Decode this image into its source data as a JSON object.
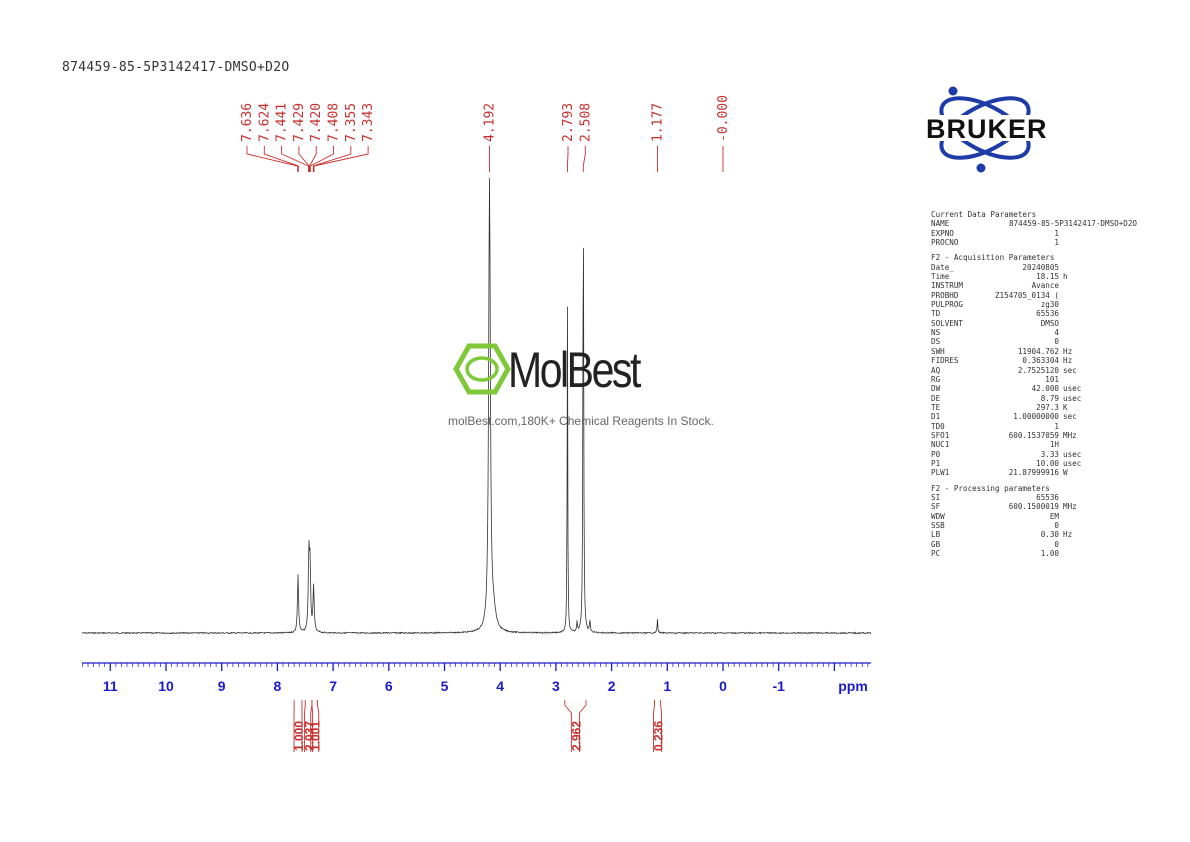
{
  "sample_title": "874459-85-5P3142417-DMSO+D2O",
  "brand": {
    "name": "BRUKER",
    "colors": {
      "ring": "#1e3ca8",
      "text": "#111111"
    }
  },
  "watermark": {
    "name": "MolBest",
    "tagline": "molBest.com,180K+ Chemical Reagents In Stock.",
    "accent": "#7ec83a"
  },
  "colors": {
    "annotation": "#c8302e",
    "axis": "#1a1acc",
    "trace": "#333333"
  },
  "parameters": [
    {
      "title": "Current Data Parameters",
      "rows": [
        {
          "k": "NAME",
          "v": "874459-85-5P3142417-DMSO+D2O",
          "u": "",
          "wide": true
        },
        {
          "k": "EXPNO",
          "v": "1",
          "u": ""
        },
        {
          "k": "PROCNO",
          "v": "1",
          "u": ""
        }
      ]
    },
    {
      "title": "F2 - Acquisition Parameters",
      "rows": [
        {
          "k": "Date_",
          "v": "20240805",
          "u": ""
        },
        {
          "k": "Time",
          "v": "18.15",
          "u": "h"
        },
        {
          "k": "INSTRUM",
          "v": "Avance",
          "u": ""
        },
        {
          "k": "PROBHD",
          "v": "Z154705_0134 (",
          "u": ""
        },
        {
          "k": "PULPROG",
          "v": "zg30",
          "u": ""
        },
        {
          "k": "TD",
          "v": "65536",
          "u": ""
        },
        {
          "k": "SOLVENT",
          "v": "DMSO",
          "u": ""
        },
        {
          "k": "NS",
          "v": "4",
          "u": ""
        },
        {
          "k": "DS",
          "v": "0",
          "u": ""
        },
        {
          "k": "SWH",
          "v": "11904.762",
          "u": "Hz"
        },
        {
          "k": "FIDRES",
          "v": "0.363304",
          "u": "Hz"
        },
        {
          "k": "AQ",
          "v": "2.7525120",
          "u": "sec"
        },
        {
          "k": "RG",
          "v": "101",
          "u": ""
        },
        {
          "k": "DW",
          "v": "42.000",
          "u": "usec"
        },
        {
          "k": "DE",
          "v": "8.79",
          "u": "usec"
        },
        {
          "k": "TE",
          "v": "297.3",
          "u": "K"
        },
        {
          "k": "D1",
          "v": "1.00000000",
          "u": "sec"
        },
        {
          "k": "TD0",
          "v": "1",
          "u": ""
        },
        {
          "k": "SFO1",
          "v": "600.1537059",
          "u": "MHz"
        },
        {
          "k": "NUC1",
          "v": "1H",
          "u": ""
        },
        {
          "k": "P0",
          "v": "3.33",
          "u": "usec"
        },
        {
          "k": "P1",
          "v": "10.00",
          "u": "usec"
        },
        {
          "k": "PLW1",
          "v": "21.87999916",
          "u": "W"
        }
      ]
    },
    {
      "title": "F2 - Processing parameters",
      "rows": [
        {
          "k": "SI",
          "v": "65536",
          "u": ""
        },
        {
          "k": "SF",
          "v": "600.1500019",
          "u": "MHz"
        },
        {
          "k": "WDW",
          "v": "EM",
          "u": ""
        },
        {
          "k": "SSB",
          "v": "0",
          "u": ""
        },
        {
          "k": "LB",
          "v": "0.30",
          "u": "Hz"
        },
        {
          "k": "GB",
          "v": "0",
          "u": ""
        },
        {
          "k": "PC",
          "v": "1.00",
          "u": ""
        }
      ]
    }
  ],
  "chart_data": {
    "type": "line",
    "xlabel": "ppm",
    "xlim": [
      11.5,
      -2.7
    ],
    "x_reversed": true,
    "x_ticks": [
      11,
      10,
      9,
      8,
      7,
      6,
      5,
      4,
      3,
      2,
      1,
      0,
      -1
    ],
    "x_tick_labels": [
      "11",
      "10",
      "9",
      "8",
      "7",
      "6",
      "5",
      "4",
      "3",
      "2",
      "1",
      "0",
      "-1"
    ],
    "peak_labels": [
      {
        "text": "7.636",
        "ppm": 7.636,
        "group": 1
      },
      {
        "text": "7.624",
        "ppm": 7.624,
        "group": 1
      },
      {
        "text": "7.441",
        "ppm": 7.441,
        "group": 1
      },
      {
        "text": "7.429",
        "ppm": 7.429,
        "group": 1
      },
      {
        "text": "7.420",
        "ppm": 7.42,
        "group": 1
      },
      {
        "text": "7.408",
        "ppm": 7.408,
        "group": 1
      },
      {
        "text": "7.355",
        "ppm": 7.355,
        "group": 1
      },
      {
        "text": "7.343",
        "ppm": 7.343,
        "group": 1
      },
      {
        "text": "4.192",
        "ppm": 4.192,
        "group": 2
      },
      {
        "text": "2.793",
        "ppm": 2.793,
        "group": 3
      },
      {
        "text": "2.508",
        "ppm": 2.508,
        "group": 3
      },
      {
        "text": "1.177",
        "ppm": 1.177,
        "group": 4
      },
      {
        "text": "-0.000",
        "ppm": 0.0,
        "group": 5
      }
    ],
    "peaks": [
      {
        "ppm": 7.63,
        "height": 0.17,
        "width": 0.012
      },
      {
        "ppm": 7.435,
        "height": 0.225,
        "width": 0.013
      },
      {
        "ppm": 7.414,
        "height": 0.18,
        "width": 0.012
      },
      {
        "ppm": 7.35,
        "height": 0.135,
        "width": 0.012
      },
      {
        "ppm": 4.192,
        "height": 1.35,
        "width": 0.018
      },
      {
        "ppm": 4.12,
        "height": 0.05,
        "width": 0.05
      },
      {
        "ppm": 2.793,
        "height": 1.0,
        "width": 0.006
      },
      {
        "ppm": 2.508,
        "height": 1.35,
        "width": 0.008
      },
      {
        "ppm": 2.62,
        "height": 0.03,
        "width": 0.008
      },
      {
        "ppm": 2.39,
        "height": 0.035,
        "width": 0.008
      },
      {
        "ppm": 1.177,
        "height": 0.04,
        "width": 0.008
      }
    ],
    "integrals": [
      {
        "text": "1.000",
        "from": 7.7,
        "to": 7.56
      },
      {
        "text": "2.037",
        "from": 7.5,
        "to": 7.38
      },
      {
        "text": "1.001",
        "from": 7.38,
        "to": 7.28
      },
      {
        "text": "2.962",
        "from": 2.84,
        "to": 2.46
      },
      {
        "text": "0.236",
        "from": 1.23,
        "to": 1.12
      }
    ]
  }
}
